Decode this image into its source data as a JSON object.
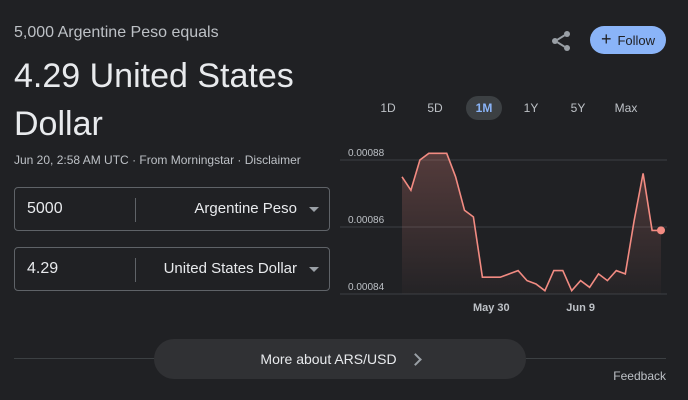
{
  "header": {
    "subtitle": "5,000 Argentine Peso equals",
    "result": "4.29 United States Dollar"
  },
  "meta": {
    "timestamp": "Jun 20, 2:58 AM UTC",
    "separator1": " · ",
    "source": "From Morningstar",
    "separator2": " · ",
    "disclaimer": "Disclaimer"
  },
  "converter": {
    "from": {
      "value": "5000",
      "currency": "Argentine Peso"
    },
    "to": {
      "value": "4.29",
      "currency": "United States Dollar"
    }
  },
  "actions": {
    "follow_label": "Follow",
    "share_icon": "share-icon"
  },
  "ranges": [
    {
      "label": "1D",
      "active": false
    },
    {
      "label": "5D",
      "active": false
    },
    {
      "label": "1M",
      "active": true
    },
    {
      "label": "1Y",
      "active": false
    },
    {
      "label": "5Y",
      "active": false
    },
    {
      "label": "Max",
      "active": false
    }
  ],
  "chart_data": {
    "type": "area",
    "y_ticks": [
      "0.00088",
      "0.00086",
      "0.00084"
    ],
    "y_tick_values": [
      0.00088,
      0.00086,
      0.00084
    ],
    "ylim": [
      0.00084,
      0.00088
    ],
    "x_tick_labels": [
      {
        "label": "May 30",
        "day": 10
      },
      {
        "label": "Jun 9",
        "day": 20
      }
    ],
    "series": [
      {
        "values": [
          0.000875,
          0.000871,
          0.00088,
          0.000882,
          0.000882,
          0.000882,
          0.000875,
          0.000865,
          0.000863,
          0.000845,
          0.000845,
          0.000845,
          0.000846,
          0.000847,
          0.000844,
          0.000843,
          0.000841,
          0.000847,
          0.000847,
          0.000841,
          0.000844,
          0.000842,
          0.000846,
          0.000844,
          0.000847,
          0.000846,
          0.000862,
          0.000876,
          0.000859,
          0.000859
        ],
        "color": "#f28b82"
      }
    ],
    "grid": true,
    "line_color": "#f28b82"
  },
  "footer": {
    "more_label": "More about ARS/USD",
    "feedback_label": "Feedback"
  }
}
